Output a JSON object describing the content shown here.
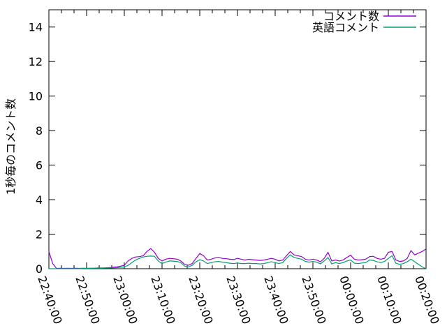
{
  "chart_data": {
    "type": "line",
    "title": "",
    "xlabel": "",
    "ylabel": "1秒毎のコメント数",
    "x_start": "22:40:00",
    "x_end": "00:20:00",
    "x_interval_sec": 60,
    "x_tick_labels": [
      "22:40:00",
      "22:50:00",
      "23:00:00",
      "23:10:00",
      "23:20:00",
      "23:30:00",
      "23:40:00",
      "23:50:00",
      "00:00:00",
      "00:10:00",
      "00:20:00"
    ],
    "x_minor_divisions": 3,
    "yticks": [
      0,
      2,
      4,
      6,
      8,
      10,
      12,
      14
    ],
    "ylim": [
      0,
      15
    ],
    "grid": "off",
    "legend_position": "top-right",
    "background_color": "#ffffff",
    "border_color": "#000000",
    "series": [
      {
        "name": "コメント数",
        "color": "#9400d3",
        "values": [
          1.0,
          0.3,
          0.02,
          0.03,
          0.02,
          0.03,
          0.02,
          0.03,
          0.02,
          0.03,
          0.02,
          0.03,
          0.03,
          0.04,
          0.04,
          0.05,
          0.06,
          0.08,
          0.1,
          0.15,
          0.2,
          0.45,
          0.6,
          0.68,
          0.7,
          0.75,
          1.0,
          1.17,
          0.95,
          0.6,
          0.45,
          0.55,
          0.6,
          0.58,
          0.55,
          0.45,
          0.25,
          0.2,
          0.3,
          0.6,
          0.88,
          0.75,
          0.5,
          0.55,
          0.62,
          0.65,
          0.6,
          0.58,
          0.55,
          0.53,
          0.6,
          0.55,
          0.5,
          0.55,
          0.52,
          0.5,
          0.48,
          0.5,
          0.55,
          0.6,
          0.55,
          0.45,
          0.5,
          0.75,
          1.0,
          0.8,
          0.75,
          0.7,
          0.55,
          0.5,
          0.55,
          0.5,
          0.4,
          0.6,
          0.95,
          0.45,
          0.5,
          0.45,
          0.5,
          0.65,
          0.78,
          0.55,
          0.5,
          0.52,
          0.55,
          0.7,
          0.72,
          0.6,
          0.55,
          0.6,
          0.95,
          1.0,
          0.5,
          0.42,
          0.45,
          0.6,
          1.05,
          0.8,
          0.9,
          1.0,
          1.15
        ]
      },
      {
        "name": "英語コメント",
        "color": "#009e73",
        "values": [
          0,
          0,
          0,
          0,
          0,
          0,
          0,
          0,
          0,
          0.02,
          0.02,
          0.02,
          0.03,
          0.03,
          0.03,
          0.04,
          0.04,
          0.05,
          0.06,
          0.08,
          0.1,
          0.2,
          0.35,
          0.5,
          0.6,
          0.68,
          0.72,
          0.73,
          0.72,
          0.45,
          0.3,
          0.38,
          0.45,
          0.44,
          0.42,
          0.35,
          0.15,
          0.1,
          0.2,
          0.4,
          0.52,
          0.45,
          0.3,
          0.35,
          0.4,
          0.42,
          0.38,
          0.35,
          0.32,
          0.3,
          0.33,
          0.3,
          0.3,
          0.32,
          0.3,
          0.3,
          0.28,
          0.3,
          0.35,
          0.4,
          0.35,
          0.3,
          0.35,
          0.6,
          0.8,
          0.65,
          0.6,
          0.55,
          0.42,
          0.38,
          0.42,
          0.38,
          0.28,
          0.45,
          0.65,
          0.28,
          0.35,
          0.3,
          0.35,
          0.45,
          0.5,
          0.32,
          0.3,
          0.33,
          0.35,
          0.5,
          0.48,
          0.4,
          0.35,
          0.42,
          0.6,
          0.75,
          0.32,
          0.25,
          0.3,
          0.4,
          0.55,
          0.4,
          0.25,
          0.1,
          0.0
        ]
      }
    ]
  }
}
